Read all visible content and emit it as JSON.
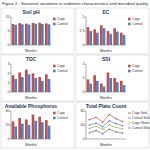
{
  "caption": "Figure 2 : Seasonal variations in sediment characteristics and microbial quality",
  "chart_data": [
    {
      "type": "bar",
      "title": "Soil pH",
      "x_label": "Months",
      "categories": [
        null,
        null,
        null,
        null,
        null,
        null
      ],
      "series": [
        {
          "name": "Cage",
          "color": "#c0504d",
          "values": [
            7.5,
            7.8,
            7.6,
            7.9,
            8.0,
            7.7
          ]
        },
        {
          "name": "Control",
          "color": "#4f81bd",
          "values": [
            7.2,
            7.4,
            7.3,
            7.6,
            7.5,
            7.4
          ]
        }
      ],
      "ylim": [
        0,
        10
      ],
      "yticks": [
        0,
        5,
        10
      ],
      "legend": "right",
      "grid": false
    },
    {
      "type": "bar",
      "title": "EC",
      "x_label": "Months",
      "categories": [
        null,
        null,
        null,
        null,
        null,
        null
      ],
      "series": [
        {
          "name": "Cage",
          "color": "#c0504d",
          "values": [
            3.2,
            2.8,
            3.5,
            2.5,
            3.0,
            2.2
          ]
        },
        {
          "name": "Control",
          "color": "#4f81bd",
          "values": [
            2.5,
            2.2,
            3.0,
            2.0,
            2.4,
            1.8
          ]
        }
      ],
      "ylim": [
        0,
        5
      ],
      "yticks": [
        0,
        2.5,
        5
      ],
      "legend": "right",
      "grid": false
    },
    {
      "type": "bar",
      "title": "TOC",
      "x_label": "Months",
      "categories": [
        null,
        null,
        null,
        null,
        null,
        null
      ],
      "series": [
        {
          "name": "Cage",
          "color": "#c0504d",
          "values": [
            1.8,
            2.1,
            2.4,
            2.0,
            1.6,
            1.9
          ]
        },
        {
          "name": "Control",
          "color": "#4f81bd",
          "values": [
            1.4,
            1.6,
            1.9,
            1.5,
            1.2,
            1.4
          ]
        }
      ],
      "ylim": [
        0,
        3
      ],
      "yticks": [
        0,
        1,
        2,
        3
      ],
      "legend": "right",
      "grid": false
    },
    {
      "type": "bar",
      "title": "SSI",
      "x_label": "Months",
      "categories": [
        null,
        null,
        null,
        null,
        null,
        null
      ],
      "series": [
        {
          "name": "Cage",
          "color": "#c0504d",
          "values": [
            0.9,
            1.2,
            0.6,
            1.4,
            1.0,
            0.8
          ]
        },
        {
          "name": "Control",
          "color": "#4f81bd",
          "values": [
            0.6,
            0.8,
            0.4,
            1.0,
            0.7,
            0.5
          ]
        }
      ],
      "ylim": [
        0,
        2
      ],
      "yticks": [
        0,
        1,
        2
      ],
      "legend": "right",
      "grid": false
    },
    {
      "type": "bar",
      "title": "Available Phosphorus",
      "x_label": "Months",
      "categories": [
        null,
        null,
        null,
        null,
        null,
        null
      ],
      "series": [
        {
          "name": "Cage",
          "color": "#c0504d",
          "values": [
            25,
            30,
            28,
            35,
            32,
            27
          ]
        },
        {
          "name": "Control",
          "color": "#4f81bd",
          "values": [
            18,
            22,
            20,
            26,
            24,
            19
          ]
        }
      ],
      "ylim": [
        0,
        40
      ],
      "yticks": [
        0,
        20,
        40
      ],
      "legend": "right",
      "grid": false
    },
    {
      "type": "line",
      "title": "Total Plate Count",
      "x_label": "Months",
      "categories": [
        null,
        null,
        null,
        null,
        null,
        null
      ],
      "series": [
        {
          "name": "Cage Sed.",
          "color": "#c0504d",
          "marker": "circle",
          "values": [
            55,
            62,
            48,
            70,
            58,
            50
          ]
        },
        {
          "name": "Control Sed.",
          "color": "#4f81bd",
          "marker": "circle",
          "values": [
            40,
            45,
            35,
            52,
            44,
            38
          ]
        },
        {
          "name": "Cage Water",
          "color": "#9bbb59",
          "marker": "circle",
          "values": [
            30,
            36,
            28,
            40,
            33,
            29
          ]
        },
        {
          "name": "Control Water",
          "color": "#8064a2",
          "marker": "circle",
          "values": [
            18,
            24,
            15,
            28,
            20,
            17
          ]
        }
      ],
      "ylim": [
        0,
        80
      ],
      "yticks": [
        0,
        40,
        80
      ],
      "legend": "right",
      "grid": false
    }
  ]
}
